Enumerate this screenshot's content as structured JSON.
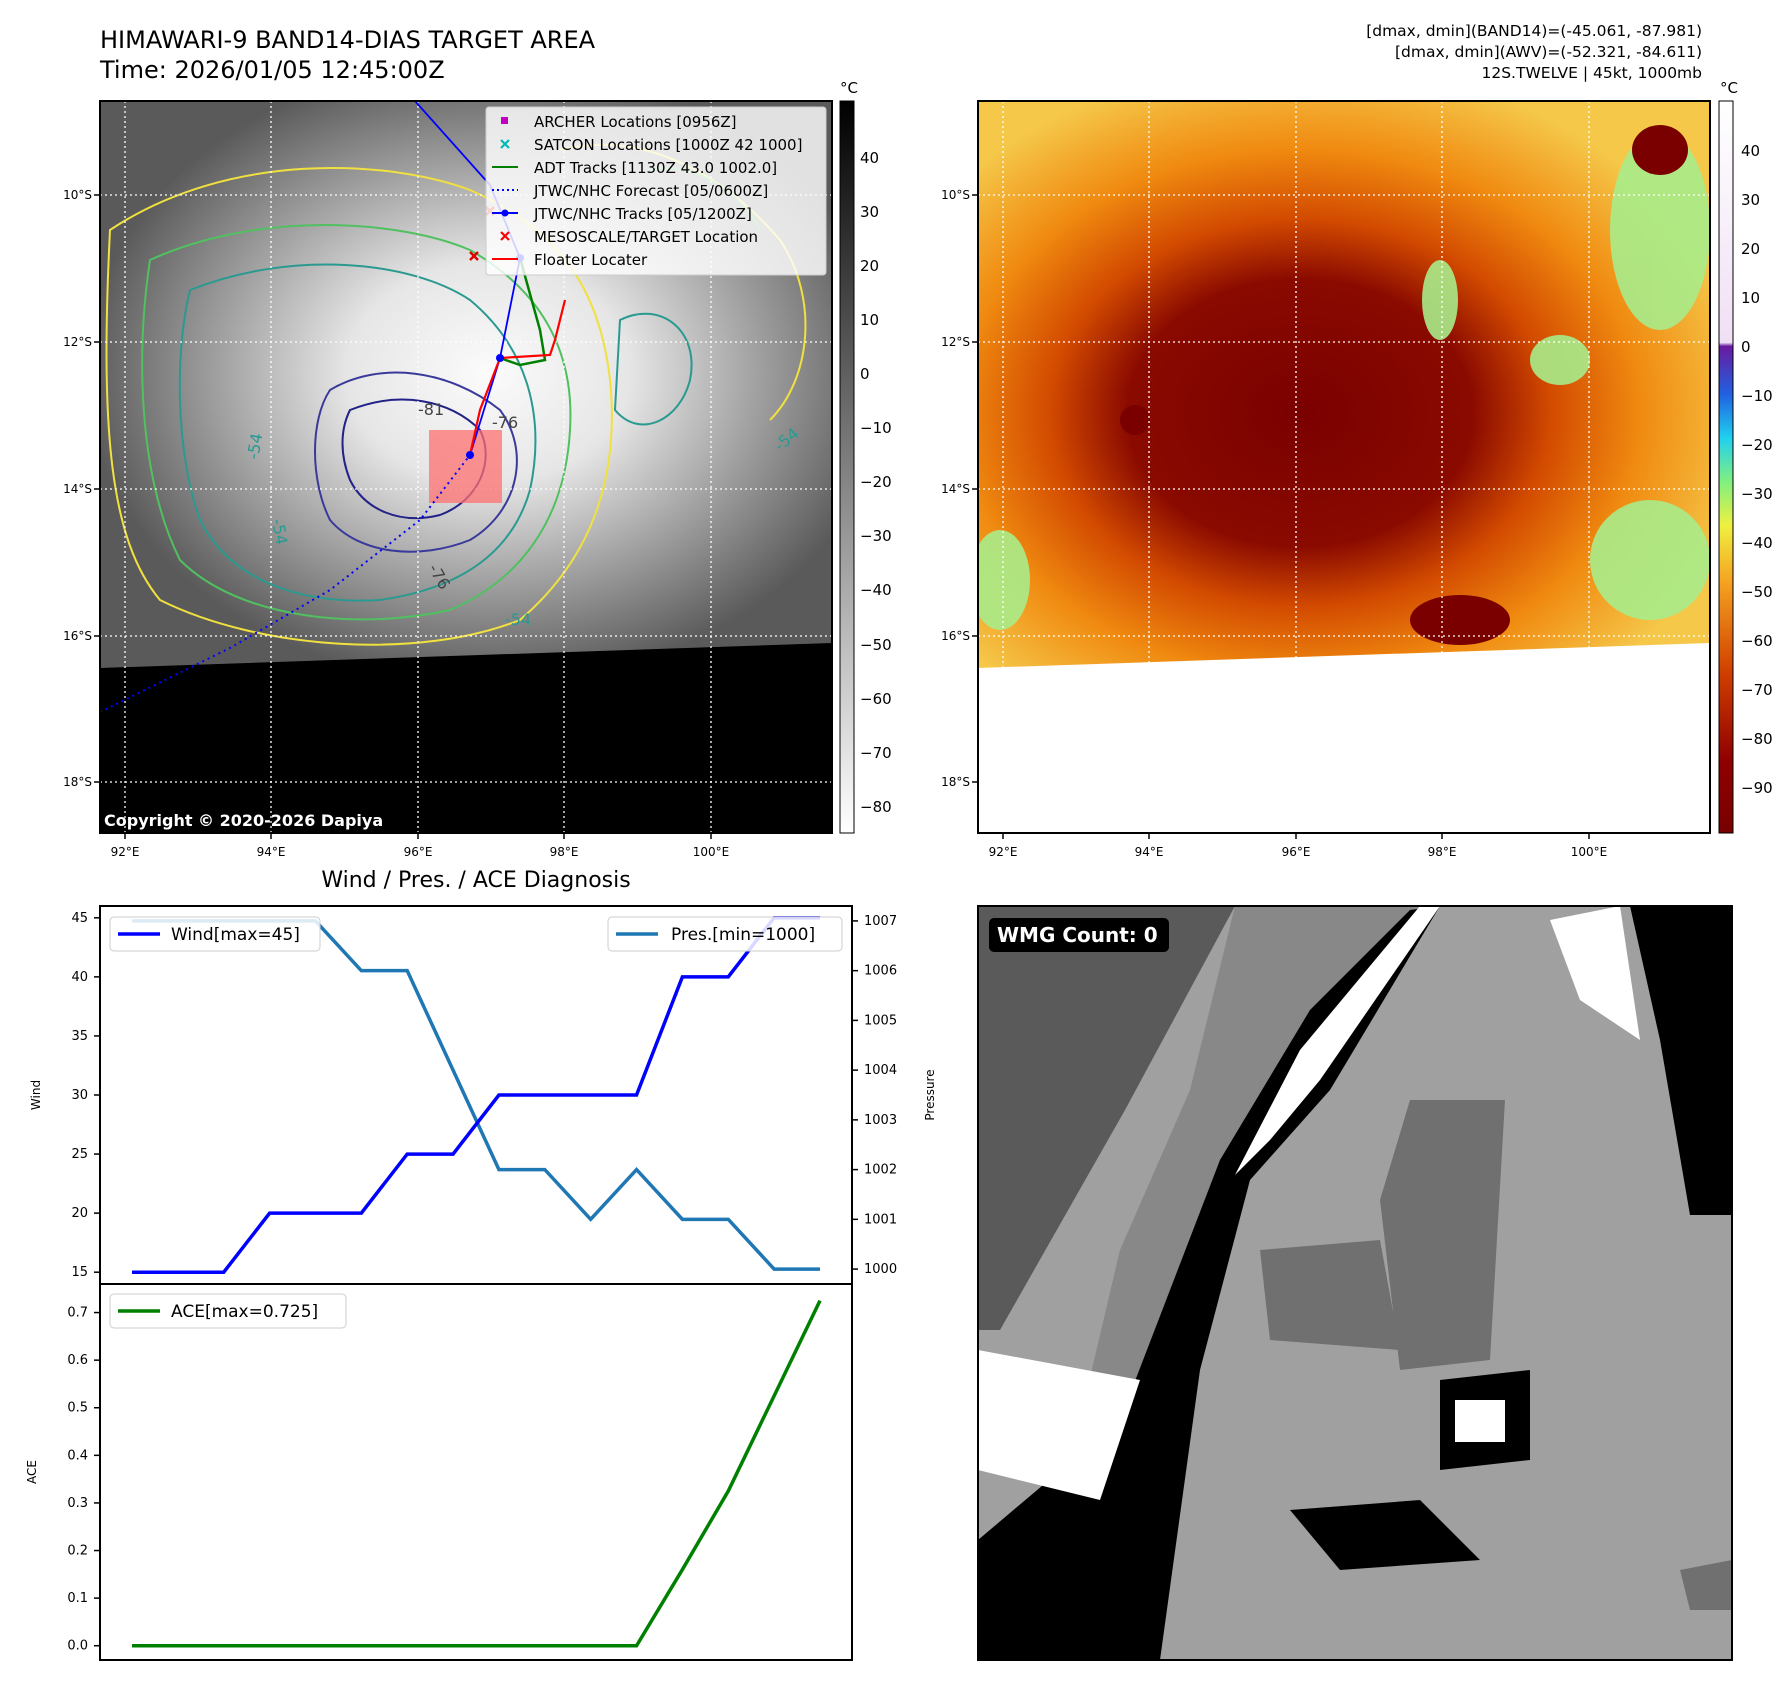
{
  "header": {
    "title": "HIMAWARI-9 BAND14-DIAS TARGET AREA",
    "time": "Time: 2026/01/05 12:45:00Z",
    "info_band14": "[dmax, dmin](BAND14)=(-45.061, -87.981)",
    "info_awv": "[dmax, dmin](AWV)=(-52.321, -84.611)",
    "info_storm": "12S.TWELVE | 45kt, 1000mb"
  },
  "map": {
    "lat_ticks": [
      "10°S",
      "12°S",
      "14°S",
      "16°S",
      "18°S"
    ],
    "lon_ticks": [
      "92°E",
      "94°E",
      "96°E",
      "98°E",
      "100°E"
    ],
    "copyright": "Copyright © 2020-2026 Dapiya",
    "contour_labels": [
      "-81",
      "-76",
      "-76",
      "-54",
      "-54",
      "-54",
      "-54"
    ],
    "legend": [
      {
        "label": "ARCHER Locations [0956Z]",
        "color": "#c000c0",
        "marker": "square"
      },
      {
        "label": "SATCON Locations [1000Z 42 1000]",
        "color": "#00b8b8",
        "marker": "x"
      },
      {
        "label": "ADT Tracks [1130Z 43.0 1002.0]",
        "color": "#008000",
        "marker": "line"
      },
      {
        "label": "JTWC/NHC Forecast [05/0600Z]",
        "color": "#0000ff",
        "marker": "dotted"
      },
      {
        "label": "JTWC/NHC Tracks [05/1200Z]",
        "color": "#0000ff",
        "marker": "line-dot"
      },
      {
        "label": "MESOSCALE/TARGET Location",
        "color": "#ff0000",
        "marker": "x"
      },
      {
        "label": "Floater Locater",
        "color": "#ff0000",
        "marker": "line"
      }
    ]
  },
  "colorbars": {
    "unit": "°C",
    "gray_ticks": [
      "40",
      "30",
      "20",
      "10",
      "0",
      "−10",
      "−20",
      "−30",
      "−40",
      "−50",
      "−60",
      "−70",
      "−80"
    ],
    "awv_ticks": [
      "40",
      "30",
      "20",
      "10",
      "0",
      "−10",
      "−20",
      "−30",
      "−40",
      "−50",
      "−60",
      "−70",
      "−80",
      "−90"
    ]
  },
  "wmg": {
    "label": "WMG Count: 0"
  },
  "chart_data": [
    {
      "type": "line",
      "title": "Wind / Pres. / ACE Diagnosis",
      "x": [
        0,
        1,
        2,
        3,
        4,
        5,
        6,
        7,
        8,
        9,
        10,
        11,
        12,
        13,
        14,
        15
      ],
      "xlabel": "",
      "ylabel": "Wind",
      "ylim": [
        14,
        46
      ],
      "yticks": [
        "15",
        "20",
        "25",
        "30",
        "35",
        "40",
        "45"
      ],
      "series": [
        {
          "name": "Wind[max=45]",
          "color": "#0000ff",
          "values": [
            15,
            15,
            15,
            20,
            20,
            20,
            25,
            25,
            30,
            30,
            30,
            30,
            40,
            40,
            45,
            45
          ]
        }
      ],
      "y2label": "Pressure",
      "y2lim": [
        999.7,
        1007.3
      ],
      "y2ticks": [
        "1000",
        "1001",
        "1002",
        "1003",
        "1004",
        "1005",
        "1006",
        "1007"
      ],
      "series2": [
        {
          "name": "Pres.[min=1000]",
          "color": "#1f77b4",
          "values": [
            1007,
            1007,
            1007,
            1007,
            1007,
            1006,
            1006,
            1004,
            1002,
            1002,
            1001,
            1002,
            1001,
            1001,
            1000,
            1000
          ]
        }
      ],
      "legend": [
        "top-left",
        "top-right"
      ]
    },
    {
      "type": "line",
      "x": [
        0,
        1,
        2,
        3,
        4,
        5,
        6,
        7,
        8,
        9,
        10,
        11,
        12,
        13,
        14,
        15
      ],
      "ylabel": "ACE",
      "ylim": [
        -0.03,
        0.76
      ],
      "yticks": [
        "0.0",
        "0.1",
        "0.2",
        "0.3",
        "0.4",
        "0.5",
        "0.6",
        "0.7"
      ],
      "series": [
        {
          "name": "ACE[max=0.725]",
          "color": "#008000",
          "values": [
            0,
            0,
            0,
            0,
            0,
            0,
            0,
            0,
            0,
            0,
            0,
            0,
            0.16,
            0.325,
            0.525,
            0.725
          ]
        }
      ],
      "legend": "top-left"
    }
  ]
}
